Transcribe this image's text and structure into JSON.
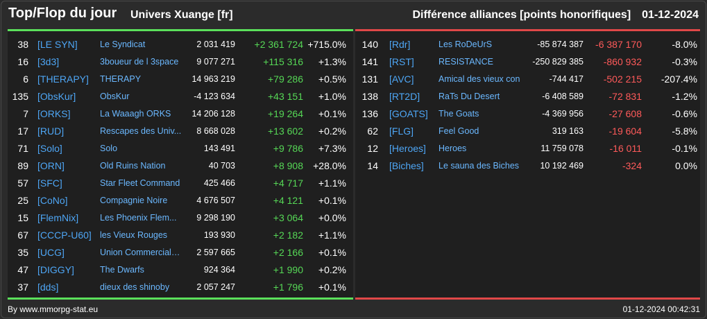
{
  "header": {
    "title": "Top/Flop du jour",
    "server": "Univers Xuange [fr]",
    "subject": "Différence alliances [points honorifiques]",
    "date": "01-12-2024"
  },
  "colors": {
    "top_accent": "#5be05b",
    "flop_accent": "#e04848",
    "tag_color": "#4ea6f5",
    "positive": "#56d856",
    "negative": "#ff5a5a"
  },
  "top": [
    {
      "rank": "38",
      "tag": "[LE SYN]",
      "name": "Le Syndicat",
      "points": "2 031 419",
      "diff": "+2 361 724",
      "pct": "+715.0%"
    },
    {
      "rank": "16",
      "tag": "[3d3]",
      "name": "3boueur de l 3space",
      "points": "9 077 271",
      "diff": "+115 316",
      "pct": "+1.3%"
    },
    {
      "rank": "6",
      "tag": "[THERAPY]",
      "name": "THERAPY",
      "points": "14 963 219",
      "diff": "+79 286",
      "pct": "+0.5%"
    },
    {
      "rank": "135",
      "tag": "[ObsKur]",
      "name": "ObsKur",
      "points": "-4 123 634",
      "diff": "+43 151",
      "pct": "+1.0%"
    },
    {
      "rank": "7",
      "tag": "[ORKS]",
      "name": "La Waaagh ORKS",
      "points": "14 206 128",
      "diff": "+19 264",
      "pct": "+0.1%"
    },
    {
      "rank": "17",
      "tag": "[RUD]",
      "name": "Rescapes des Univ...",
      "points": "8 668 028",
      "diff": "+13 602",
      "pct": "+0.2%"
    },
    {
      "rank": "71",
      "tag": "[Solo]",
      "name": "Solo",
      "points": "143 491",
      "diff": "+9 786",
      "pct": "+7.3%"
    },
    {
      "rank": "89",
      "tag": "[ORN]",
      "name": "Old Ruins Nation",
      "points": "40 703",
      "diff": "+8 908",
      "pct": "+28.0%"
    },
    {
      "rank": "57",
      "tag": "[SFC]",
      "name": "Star Fleet Command",
      "points": "425 466",
      "diff": "+4 717",
      "pct": "+1.1%"
    },
    {
      "rank": "25",
      "tag": "[CoNo]",
      "name": "Compagnie Noire",
      "points": "4 676 507",
      "diff": "+4 121",
      "pct": "+0.1%"
    },
    {
      "rank": "15",
      "tag": "[FlemNix]",
      "name": "Les Phoenix Flem...",
      "points": "9 298 190",
      "diff": "+3 064",
      "pct": "+0.0%"
    },
    {
      "rank": "67",
      "tag": "[CCCP-U60]",
      "name": "les Vieux Rouges",
      "points": "193 930",
      "diff": "+2 182",
      "pct": "+1.1%"
    },
    {
      "rank": "35",
      "tag": "[UCG]",
      "name": "Union Commerciale...",
      "points": "2 597 665",
      "diff": "+2 166",
      "pct": "+0.1%"
    },
    {
      "rank": "47",
      "tag": "[DIGGY]",
      "name": "The Dwarfs",
      "points": "924 364",
      "diff": "+1 990",
      "pct": "+0.2%"
    },
    {
      "rank": "37",
      "tag": "[dds]",
      "name": "dieux des shinoby",
      "points": "2 057 247",
      "diff": "+1 796",
      "pct": "+0.1%"
    }
  ],
  "flop": [
    {
      "rank": "140",
      "tag": "[Rdr]",
      "name": "Les RoDeUrS",
      "points": "-85 874 387",
      "diff": "-6 387 170",
      "pct": "-8.0%"
    },
    {
      "rank": "141",
      "tag": "[RST]",
      "name": "RESISTANCE",
      "points": "-250 829 385",
      "diff": "-860 932",
      "pct": "-0.3%"
    },
    {
      "rank": "131",
      "tag": "[AVC]",
      "name": "Amical des vieux con",
      "points": "-744 417",
      "diff": "-502 215",
      "pct": "-207.4%"
    },
    {
      "rank": "138",
      "tag": "[RT2D]",
      "name": "RaTs Du Desert",
      "points": "-6 408 589",
      "diff": "-72 831",
      "pct": "-1.2%"
    },
    {
      "rank": "136",
      "tag": "[GOATS]",
      "name": "The Goats",
      "points": "-4 369 956",
      "diff": "-27 608",
      "pct": "-0.6%"
    },
    {
      "rank": "62",
      "tag": "[FLG]",
      "name": "Feel Good",
      "points": "319 163",
      "diff": "-19 604",
      "pct": "-5.8%"
    },
    {
      "rank": "12",
      "tag": "[Heroes]",
      "name": "Heroes",
      "points": "11 759 078",
      "diff": "-16 011",
      "pct": "-0.1%"
    },
    {
      "rank": "14",
      "tag": "[Biches]",
      "name": "Le sauna des Biches",
      "points": "10 192 469",
      "diff": "-324",
      "pct": "0.0%"
    }
  ],
  "footer": {
    "credit": "By www.mmorpg-stat.eu",
    "timestamp": "01-12-2024 00:42:31"
  }
}
